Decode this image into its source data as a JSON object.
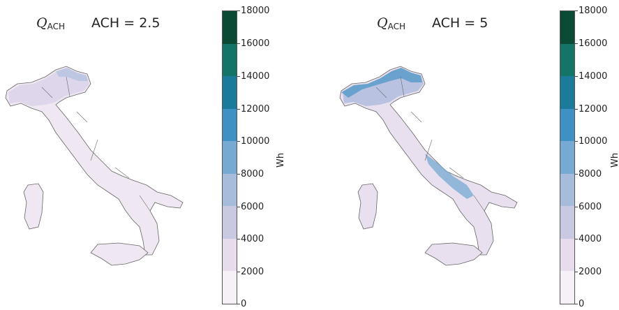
{
  "panels": [
    {
      "title_symbol": "Q",
      "title_subscript": "ACH",
      "title_condition": "ACH = 2.5"
    },
    {
      "title_symbol": "Q",
      "title_subscript": "ACH",
      "title_condition": "ACH = 5"
    }
  ],
  "colorbar": {
    "unit": "Wh",
    "ticks": [
      "18000",
      "16000",
      "14000",
      "12000",
      "10000",
      "8000",
      "6000",
      "4000",
      "2000",
      "0"
    ],
    "range": [
      0,
      18000
    ],
    "bins": [
      {
        "from": 0,
        "to": 2000,
        "color": "#f5f1f6"
      },
      {
        "from": 2000,
        "to": 4000,
        "color": "#e6dcec"
      },
      {
        "from": 4000,
        "to": 6000,
        "color": "#c9c9e1"
      },
      {
        "from": 6000,
        "to": 8000,
        "color": "#a7bcda"
      },
      {
        "from": 8000,
        "to": 10000,
        "color": "#76aad2"
      },
      {
        "from": 10000,
        "to": 12000,
        "color": "#3f91c4"
      },
      {
        "from": 12000,
        "to": 14000,
        "color": "#1c7a9a"
      },
      {
        "from": 14000,
        "to": 16000,
        "color": "#137467"
      },
      {
        "from": 16000,
        "to": 18000,
        "color": "#0b4a34"
      }
    ]
  },
  "maps": [
    {
      "label": "Italy",
      "fill": "#efe7f1",
      "north_fill": "#ded6ea",
      "hotspot_color": "#a7bcda",
      "hotspot_intensity": "low"
    },
    {
      "label": "Italy",
      "fill": "#e8e0ef",
      "north_fill": "#b9c2e0",
      "hotspot_color": "#3f91c4",
      "hotspot_intensity": "high"
    }
  ],
  "colors": {
    "border": "#555555",
    "region_border": "#666666"
  }
}
